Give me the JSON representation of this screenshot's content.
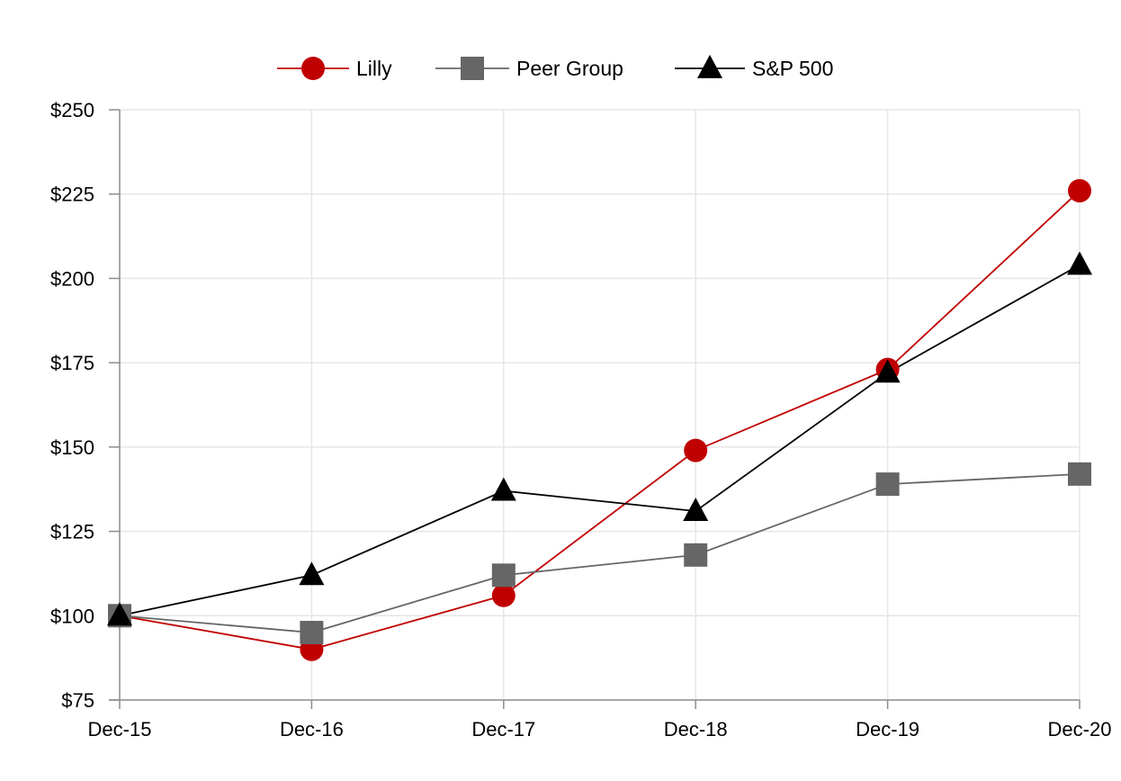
{
  "chart_data": {
    "type": "line",
    "title": "",
    "xlabel": "",
    "ylabel": "",
    "categories": [
      "Dec-15",
      "Dec-16",
      "Dec-17",
      "Dec-18",
      "Dec-19",
      "Dec-20"
    ],
    "ylim": [
      75,
      250
    ],
    "yticks": [
      75,
      100,
      125,
      150,
      175,
      200,
      225,
      250
    ],
    "ytick_labels": [
      "$75",
      "$100",
      "$125",
      "$150",
      "$175",
      "$200",
      "$225",
      "$250"
    ],
    "grid": true,
    "legend_position": "top-center",
    "series": [
      {
        "name": "Lilly",
        "values": [
          100,
          90,
          106,
          149,
          173,
          226
        ],
        "color": "#c00000",
        "marker": "circle"
      },
      {
        "name": "Peer Group",
        "values": [
          100,
          95,
          112,
          118,
          139,
          142
        ],
        "color": "#666666",
        "marker": "square"
      },
      {
        "name": "S&P 500",
        "values": [
          100,
          112,
          137,
          131,
          172,
          204
        ],
        "color": "#000000",
        "marker": "triangle"
      }
    ]
  }
}
